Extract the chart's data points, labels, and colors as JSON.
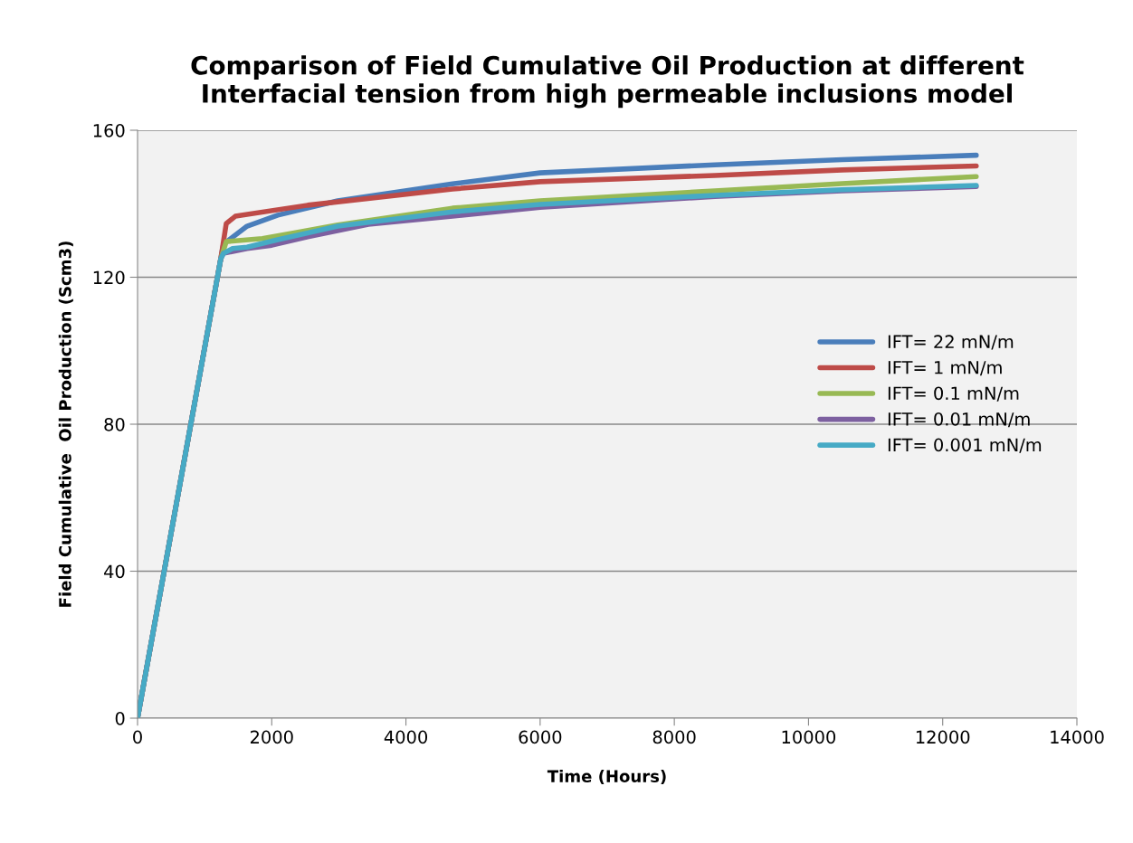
{
  "chart_data": {
    "type": "line",
    "title": "Comparison of Field Cumulative Oil Production at different\nInterfacial tension from high permeable inclusions model",
    "xlabel": "Time (Hours)",
    "ylabel": "Field Cumulative  Oil Production (Scm3)",
    "xlim": [
      0,
      14000
    ],
    "xticks": [
      0,
      2000,
      4000,
      6000,
      8000,
      10000,
      12000,
      14000
    ],
    "ylim": [
      0,
      160
    ],
    "yticks": [
      0,
      40,
      80,
      120,
      160
    ],
    "grid": "y",
    "legend": "right",
    "marker": "none",
    "line_style": "solid",
    "series": [
      {
        "name": "IFT= 22 mN/m",
        "color": "#4a7ebb",
        "x": [
          0,
          1240,
          1280,
          1632,
          2090,
          2983,
          4694,
          6000,
          8605,
          10500,
          12500
        ],
        "values": [
          0,
          125,
          129,
          133.9,
          136.9,
          140.8,
          145.4,
          148.4,
          150.6,
          152,
          153.2
        ]
      },
      {
        "name": "IFT= 1 mN/m",
        "color": "#be4b48",
        "x": [
          0,
          1240,
          1322,
          1457,
          2536,
          4694,
          6000,
          8605,
          10500,
          12500
        ],
        "values": [
          0,
          125,
          134.6,
          136.6,
          139.6,
          144,
          146,
          147.7,
          149.2,
          150.3
        ]
      },
      {
        "name": "IFT= 0.1 mN/m",
        "color": "#98b954",
        "x": [
          0,
          1240,
          1322,
          1861,
          2983,
          4694,
          6000,
          8605,
          10500,
          12500
        ],
        "values": [
          0,
          125,
          129.7,
          130.5,
          134.2,
          138.8,
          140.8,
          143.5,
          145.5,
          147.4
        ]
      },
      {
        "name": "IFT= 0.01 mN/m",
        "color": "#7d60a0",
        "x": [
          0,
          1240,
          1280,
          1632,
          2000,
          2536,
          3440,
          4694,
          6000,
          8605,
          10500,
          12500
        ],
        "values": [
          0,
          125,
          126.5,
          127.8,
          128.7,
          131,
          134.4,
          136.6,
          139,
          142,
          143.5,
          144.7
        ]
      },
      {
        "name": "IFT= 0.001 mN/m",
        "color": "#46aac5",
        "x": [
          0,
          1240,
          1280,
          1416,
          1632,
          2090,
          2983,
          4694,
          6000,
          8605,
          10500,
          12500
        ],
        "values": [
          0,
          125,
          126.5,
          127.8,
          128.2,
          130.2,
          133.9,
          137.8,
          139.8,
          142.3,
          143.8,
          145
        ]
      }
    ]
  }
}
